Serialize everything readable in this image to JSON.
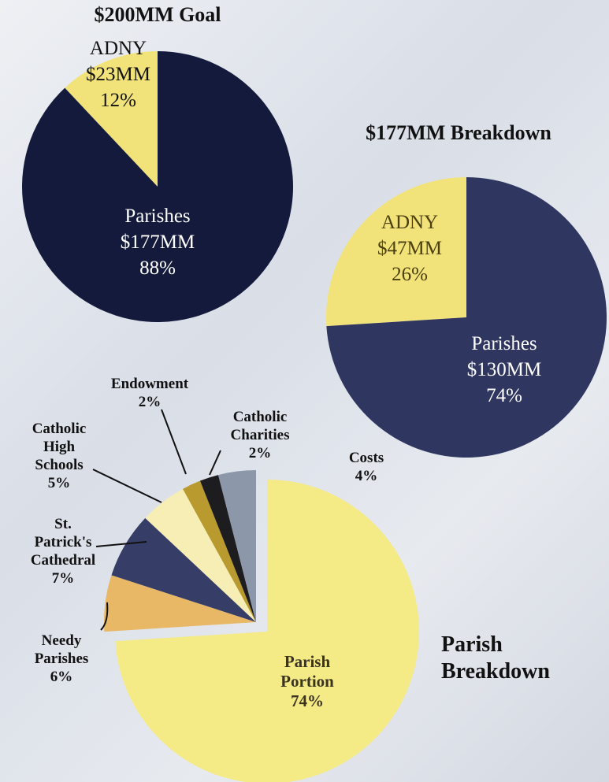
{
  "chart_data": [
    {
      "type": "pie",
      "title": "$200MM Goal",
      "categories": [
        "ADNY",
        "Parishes"
      ],
      "values": [
        12,
        88
      ],
      "value_labels": [
        "12%",
        "88%"
      ],
      "amount_labels": [
        "$23MM",
        "$177MM"
      ],
      "colors": [
        "#f2e27a",
        "#141a3c"
      ]
    },
    {
      "type": "pie",
      "title": "$177MM Breakdown",
      "categories": [
        "ADNY",
        "Parishes"
      ],
      "values": [
        26,
        74
      ],
      "value_labels": [
        "26%",
        "74%"
      ],
      "amount_labels": [
        "$47MM",
        "$130MM"
      ],
      "colors": [
        "#f2e27a",
        "#2f3660"
      ]
    },
    {
      "type": "pie",
      "title": "Parish Breakdown",
      "categories": [
        "Parish Portion",
        "Needy Parishes",
        "St. Patrick's Cathedral",
        "Catholic High Schools",
        "Endowment",
        "Catholic Charities",
        "Costs"
      ],
      "values": [
        74,
        6,
        7,
        5,
        2,
        2,
        4
      ],
      "value_labels": [
        "74%",
        "6%",
        "7%",
        "5%",
        "2%",
        "2%",
        "4%"
      ],
      "colors": [
        "#f4ea86",
        "#e8b866",
        "#363d66",
        "#f6eeb4",
        "#b89a2e",
        "#1d1d1f",
        "#8d97aa"
      ]
    }
  ]
}
